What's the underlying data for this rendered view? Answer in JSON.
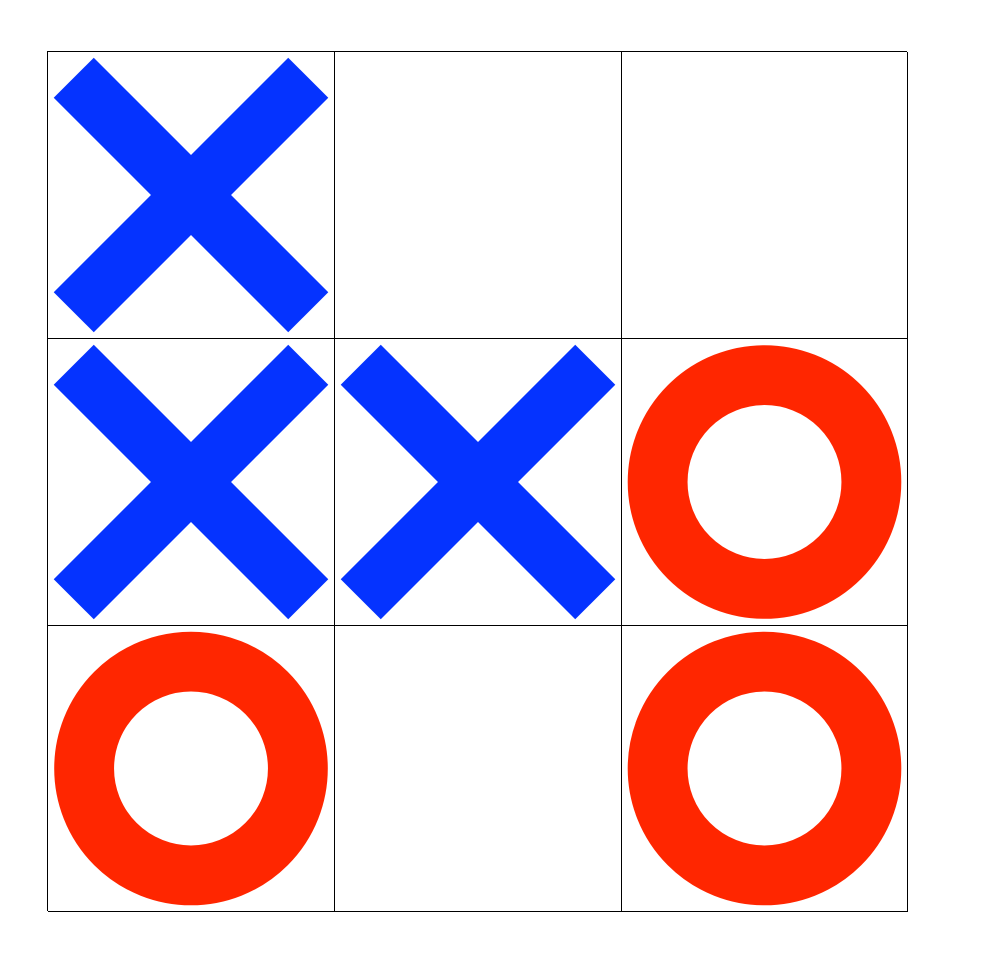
{
  "board": {
    "rows": 3,
    "cols": 3,
    "cells": [
      [
        "X",
        "",
        ""
      ],
      [
        "X",
        "X",
        "O"
      ],
      [
        "O",
        "",
        "O"
      ]
    ]
  },
  "colors": {
    "x_mark": "#0533ff",
    "o_mark": "#ff2600",
    "grid_line": "#000000",
    "background": "#ffffff"
  },
  "icons": {
    "x_mark": "x-mark-icon",
    "o_mark": "o-mark-icon"
  }
}
